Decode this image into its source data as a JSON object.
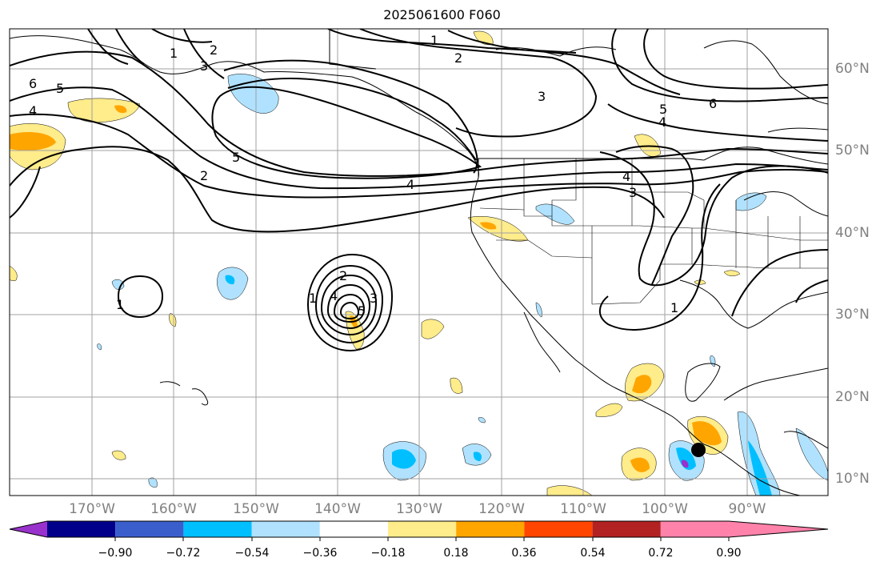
{
  "title": "2025061600 F060",
  "lat_labels": [
    "60°N",
    "50°N",
    "40°N",
    "30°N",
    "20°N",
    "10°N"
  ],
  "lon_labels": [
    "170°W",
    "160°W",
    "150°W",
    "140°W",
    "130°W",
    "120°W",
    "110°W",
    "100°W",
    "90°W"
  ],
  "colorbar": {
    "colors": [
      "#9932cc",
      "#00008b",
      "#3a5fcd",
      "#00bfff",
      "#b0e2ff",
      "#ffffff",
      "#ffec8b",
      "#ffa500",
      "#ff4500",
      "#b22222",
      "#ff82ab"
    ],
    "tick_labels": [
      "−0.90",
      "−0.72",
      "−0.54",
      "−0.36",
      "−0.18",
      "0.18",
      "0.36",
      "0.54",
      "0.72",
      "0.90"
    ]
  },
  "contour_labels": [
    "1",
    "2",
    "3",
    "4",
    "5",
    "6"
  ],
  "map": {
    "lat_range": [
      8,
      65
    ],
    "lon_range": [
      -180,
      -80
    ],
    "contour_line_color": "#000000",
    "coastline_color": "#000000",
    "grid_color": "#a0a0a0",
    "marker": "black-dot"
  }
}
